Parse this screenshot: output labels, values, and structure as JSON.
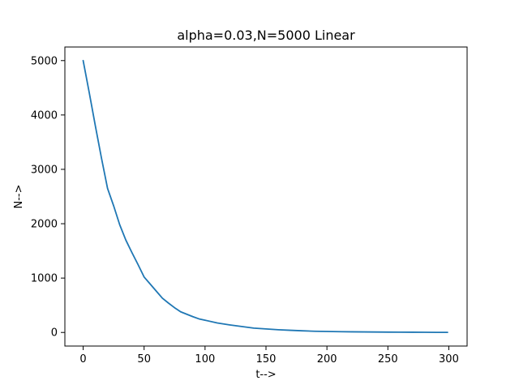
{
  "chart_data": {
    "type": "line",
    "title": "alpha=0.03,N=5000 Linear",
    "xlabel": "t-->",
    "ylabel": "N-->",
    "xlim": [
      -15,
      315
    ],
    "ylim": [
      -250,
      5250
    ],
    "xticks": [
      0,
      50,
      100,
      150,
      200,
      250,
      300
    ],
    "yticks": [
      0,
      1000,
      2000,
      3000,
      4000,
      5000
    ],
    "grid": false,
    "line_color": "#1f77b4",
    "series": [
      {
        "x": [
          0,
          5,
          10,
          15,
          20,
          25,
          30,
          35,
          40,
          45,
          50,
          55,
          60,
          65,
          70,
          75,
          80,
          85,
          90,
          95,
          100,
          110,
          120,
          130,
          140,
          150,
          160,
          170,
          180,
          190,
          200,
          210,
          220,
          230,
          240,
          250,
          260,
          270,
          280,
          290,
          299
        ],
        "y": [
          5000,
          4410,
          3800,
          3210,
          2650,
          2330,
          1980,
          1700,
          1470,
          1250,
          1020,
          890,
          760,
          630,
          540,
          455,
          380,
          335,
          290,
          250,
          225,
          175,
          140,
          110,
          80,
          65,
          50,
          40,
          30,
          22,
          18,
          15,
          12,
          10,
          8,
          6,
          5,
          4,
          3,
          2,
          1
        ]
      }
    ]
  }
}
